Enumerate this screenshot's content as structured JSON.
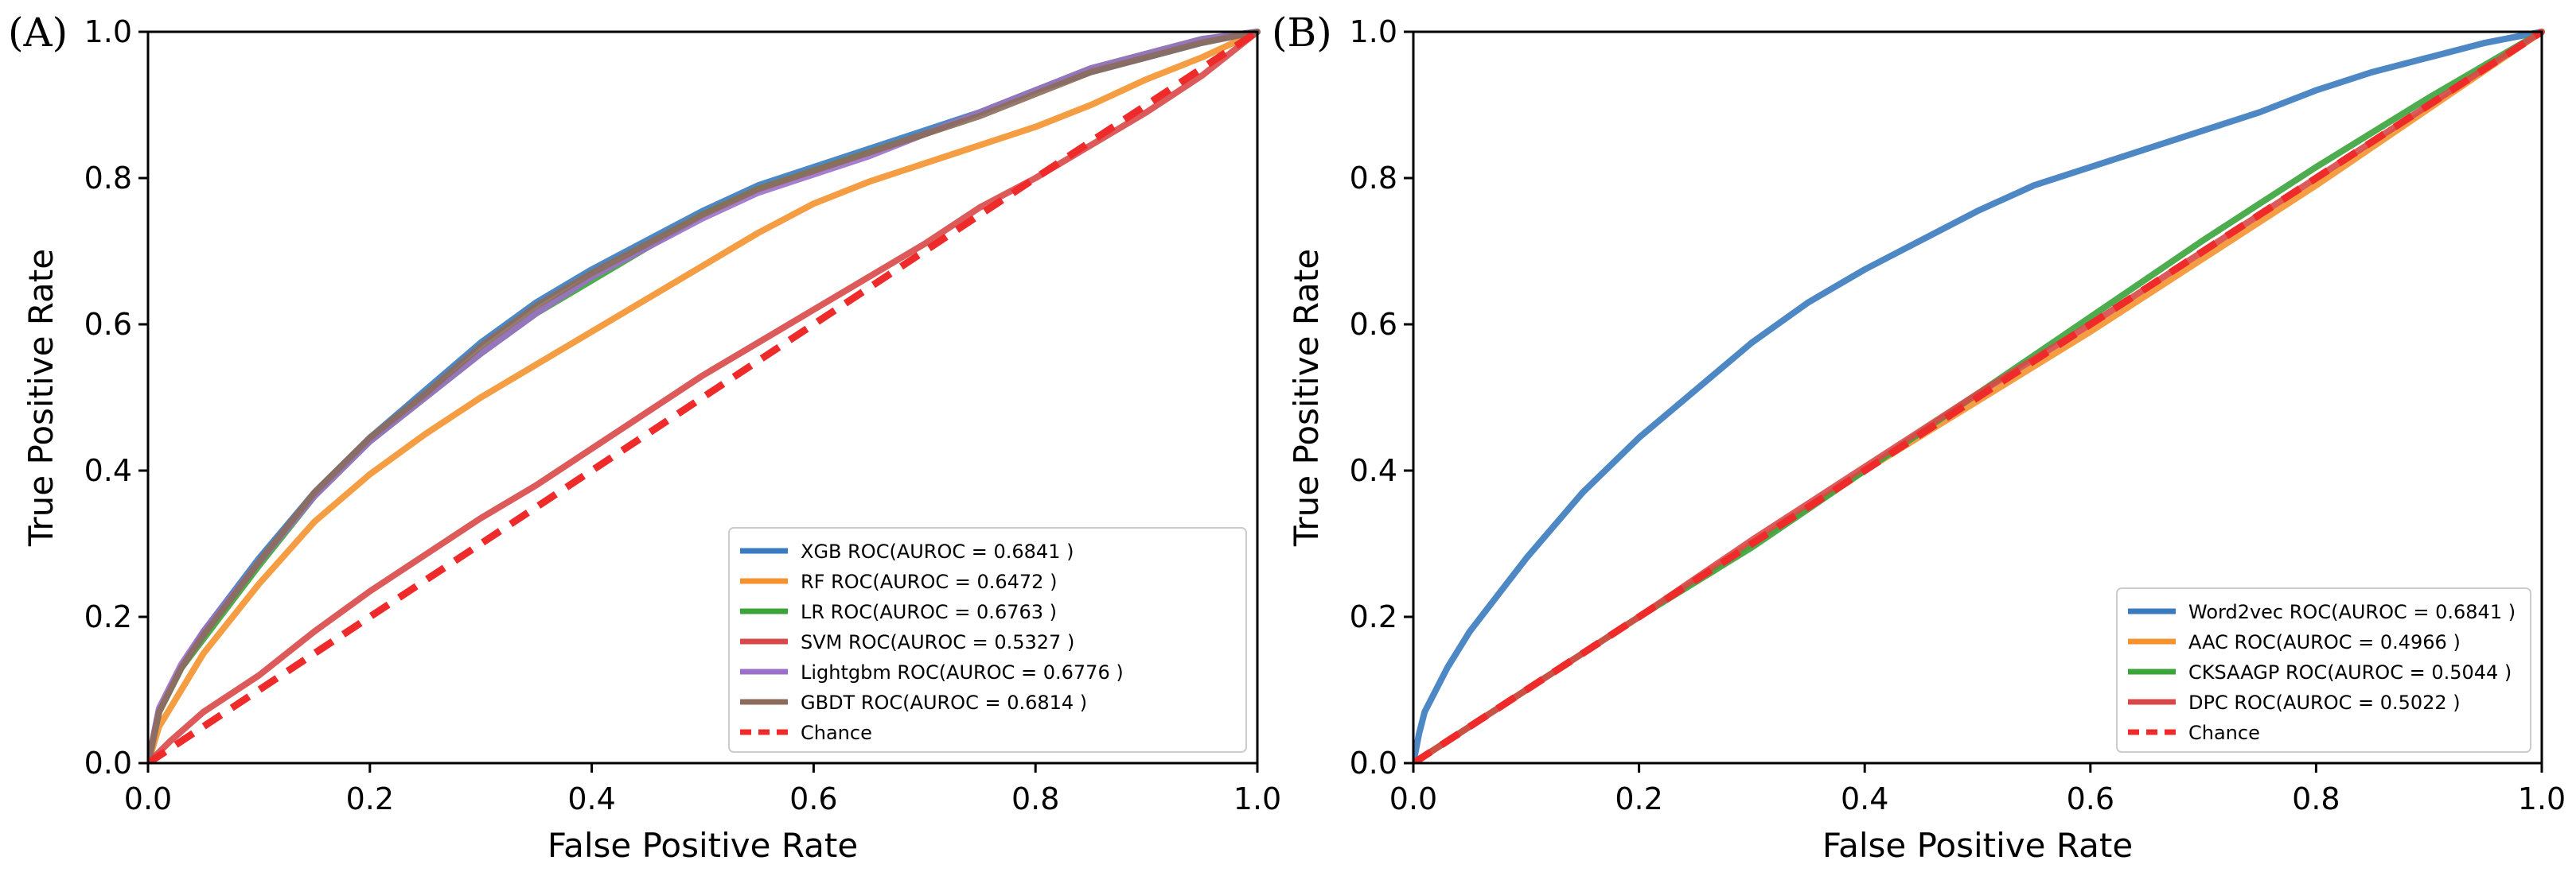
{
  "chart_data": [
    {
      "panel_label": "(A)",
      "type": "line",
      "xlabel": "False Positive Rate",
      "ylabel": "True Positive Rate",
      "xlim": [
        0,
        1
      ],
      "ylim": [
        0,
        1
      ],
      "xticks": [
        "0.0",
        "0.2",
        "0.4",
        "0.6",
        "0.8",
        "1.0"
      ],
      "yticks": [
        "0.0",
        "0.2",
        "0.4",
        "0.6",
        "0.8",
        "1.0"
      ],
      "legend_position": "lower-right",
      "series": [
        {
          "name": "XGB ROC(AUROC = 0.6841 )",
          "color": "#3a7bbf",
          "dashed": false,
          "x": [
            0,
            0.01,
            0.03,
            0.05,
            0.1,
            0.15,
            0.2,
            0.25,
            0.3,
            0.35,
            0.4,
            0.45,
            0.5,
            0.55,
            0.6,
            0.65,
            0.7,
            0.75,
            0.8,
            0.85,
            0.9,
            0.95,
            1.0
          ],
          "y": [
            0,
            0.07,
            0.13,
            0.18,
            0.28,
            0.37,
            0.445,
            0.51,
            0.575,
            0.63,
            0.675,
            0.715,
            0.755,
            0.79,
            0.815,
            0.84,
            0.865,
            0.89,
            0.92,
            0.945,
            0.965,
            0.985,
            1.0
          ]
        },
        {
          "name": "RF ROC(AUROC = 0.6472 )",
          "color": "#f4922d",
          "dashed": false,
          "x": [
            0,
            0.01,
            0.03,
            0.05,
            0.1,
            0.15,
            0.2,
            0.25,
            0.3,
            0.35,
            0.4,
            0.45,
            0.5,
            0.55,
            0.6,
            0.65,
            0.7,
            0.75,
            0.8,
            0.85,
            0.9,
            0.95,
            1.0
          ],
          "y": [
            0,
            0.05,
            0.1,
            0.15,
            0.245,
            0.33,
            0.395,
            0.45,
            0.5,
            0.545,
            0.59,
            0.635,
            0.68,
            0.725,
            0.765,
            0.795,
            0.82,
            0.845,
            0.87,
            0.9,
            0.935,
            0.965,
            1.0
          ]
        },
        {
          "name": "LR ROC(AUROC = 0.6763 )",
          "color": "#3aa33a",
          "dashed": false,
          "x": [
            0,
            0.01,
            0.03,
            0.05,
            0.1,
            0.15,
            0.2,
            0.25,
            0.3,
            0.35,
            0.4,
            0.45,
            0.5,
            0.55,
            0.6,
            0.65,
            0.7,
            0.75,
            0.8,
            0.85,
            0.9,
            0.95,
            1.0
          ],
          "y": [
            0,
            0.07,
            0.13,
            0.17,
            0.27,
            0.365,
            0.44,
            0.5,
            0.56,
            0.615,
            0.66,
            0.705,
            0.75,
            0.785,
            0.81,
            0.835,
            0.86,
            0.89,
            0.92,
            0.95,
            0.97,
            0.99,
            1.0
          ]
        },
        {
          "name": "SVM ROC(AUROC = 0.5327 )",
          "color": "#d94848",
          "dashed": false,
          "x": [
            0,
            0.02,
            0.05,
            0.1,
            0.15,
            0.2,
            0.25,
            0.3,
            0.35,
            0.4,
            0.45,
            0.5,
            0.55,
            0.6,
            0.65,
            0.7,
            0.75,
            0.8,
            0.85,
            0.9,
            0.95,
            1.0
          ],
          "y": [
            0,
            0.03,
            0.07,
            0.12,
            0.18,
            0.235,
            0.285,
            0.335,
            0.38,
            0.43,
            0.48,
            0.53,
            0.575,
            0.62,
            0.665,
            0.71,
            0.76,
            0.8,
            0.845,
            0.89,
            0.94,
            1.0
          ]
        },
        {
          "name": "Lightgbm ROC(AUROC = 0.6776 )",
          "color": "#9c70c9",
          "dashed": false,
          "x": [
            0,
            0.01,
            0.03,
            0.05,
            0.1,
            0.15,
            0.2,
            0.25,
            0.3,
            0.35,
            0.4,
            0.45,
            0.5,
            0.55,
            0.6,
            0.65,
            0.7,
            0.75,
            0.8,
            0.85,
            0.9,
            0.95,
            1.0
          ],
          "y": [
            0,
            0.075,
            0.135,
            0.18,
            0.275,
            0.365,
            0.44,
            0.5,
            0.56,
            0.615,
            0.665,
            0.705,
            0.745,
            0.78,
            0.805,
            0.83,
            0.86,
            0.89,
            0.92,
            0.95,
            0.97,
            0.99,
            1.0
          ]
        },
        {
          "name": "GBDT ROC(AUROC = 0.6814 )",
          "color": "#8c6b5a",
          "dashed": false,
          "x": [
            0,
            0.01,
            0.03,
            0.05,
            0.1,
            0.15,
            0.2,
            0.25,
            0.3,
            0.35,
            0.4,
            0.45,
            0.5,
            0.55,
            0.6,
            0.65,
            0.7,
            0.75,
            0.8,
            0.85,
            0.9,
            0.95,
            1.0
          ],
          "y": [
            0,
            0.07,
            0.13,
            0.175,
            0.275,
            0.37,
            0.445,
            0.505,
            0.57,
            0.625,
            0.67,
            0.71,
            0.75,
            0.785,
            0.81,
            0.835,
            0.86,
            0.885,
            0.915,
            0.945,
            0.965,
            0.985,
            1.0
          ]
        },
        {
          "name": "Chance",
          "color": "#ee2a2a",
          "dashed": true,
          "x": [
            0,
            1
          ],
          "y": [
            0,
            1
          ]
        }
      ]
    },
    {
      "panel_label": "(B)",
      "type": "line",
      "xlabel": "False Positive Rate",
      "ylabel": "True Positive Rate",
      "xlim": [
        0,
        1
      ],
      "ylim": [
        0,
        1
      ],
      "xticks": [
        "0.0",
        "0.2",
        "0.4",
        "0.6",
        "0.8",
        "1.0"
      ],
      "yticks": [
        "0.0",
        "0.2",
        "0.4",
        "0.6",
        "0.8",
        "1.0"
      ],
      "legend_position": "lower-right",
      "series": [
        {
          "name": "Word2vec ROC(AUROC = 0.6841 )",
          "color": "#3a7bbf",
          "dashed": false,
          "x": [
            0,
            0.005,
            0.01,
            0.03,
            0.05,
            0.1,
            0.15,
            0.2,
            0.25,
            0.3,
            0.35,
            0.4,
            0.45,
            0.5,
            0.55,
            0.6,
            0.65,
            0.7,
            0.75,
            0.8,
            0.85,
            0.9,
            0.95,
            1.0
          ],
          "y": [
            0,
            0.04,
            0.07,
            0.13,
            0.18,
            0.28,
            0.37,
            0.445,
            0.51,
            0.575,
            0.63,
            0.675,
            0.715,
            0.755,
            0.79,
            0.815,
            0.84,
            0.865,
            0.89,
            0.92,
            0.945,
            0.965,
            0.985,
            1.0
          ]
        },
        {
          "name": "AAC ROC(AUROC = 0.4966 )",
          "color": "#f4922d",
          "dashed": false,
          "x": [
            0,
            0.1,
            0.2,
            0.3,
            0.4,
            0.5,
            0.6,
            0.7,
            0.8,
            0.9,
            1.0
          ],
          "y": [
            0,
            0.1,
            0.2,
            0.3,
            0.4,
            0.495,
            0.59,
            0.69,
            0.79,
            0.895,
            1.0
          ]
        },
        {
          "name": "CKSAAGP ROC(AUROC = 0.5044 )",
          "color": "#3aa33a",
          "dashed": false,
          "x": [
            0,
            0.1,
            0.2,
            0.3,
            0.4,
            0.5,
            0.6,
            0.7,
            0.8,
            0.9,
            1.0
          ],
          "y": [
            0,
            0.1,
            0.2,
            0.295,
            0.4,
            0.505,
            0.61,
            0.715,
            0.815,
            0.91,
            1.0
          ]
        },
        {
          "name": "DPC ROC(AUROC = 0.5022 )",
          "color": "#d94848",
          "dashed": false,
          "x": [
            0,
            0.1,
            0.2,
            0.3,
            0.4,
            0.5,
            0.6,
            0.7,
            0.8,
            0.9,
            1.0
          ],
          "y": [
            0,
            0.1,
            0.2,
            0.305,
            0.405,
            0.505,
            0.6,
            0.7,
            0.8,
            0.9,
            1.0
          ]
        },
        {
          "name": "Chance",
          "color": "#ee2a2a",
          "dashed": true,
          "x": [
            0,
            1
          ],
          "y": [
            0,
            1
          ]
        }
      ]
    }
  ]
}
